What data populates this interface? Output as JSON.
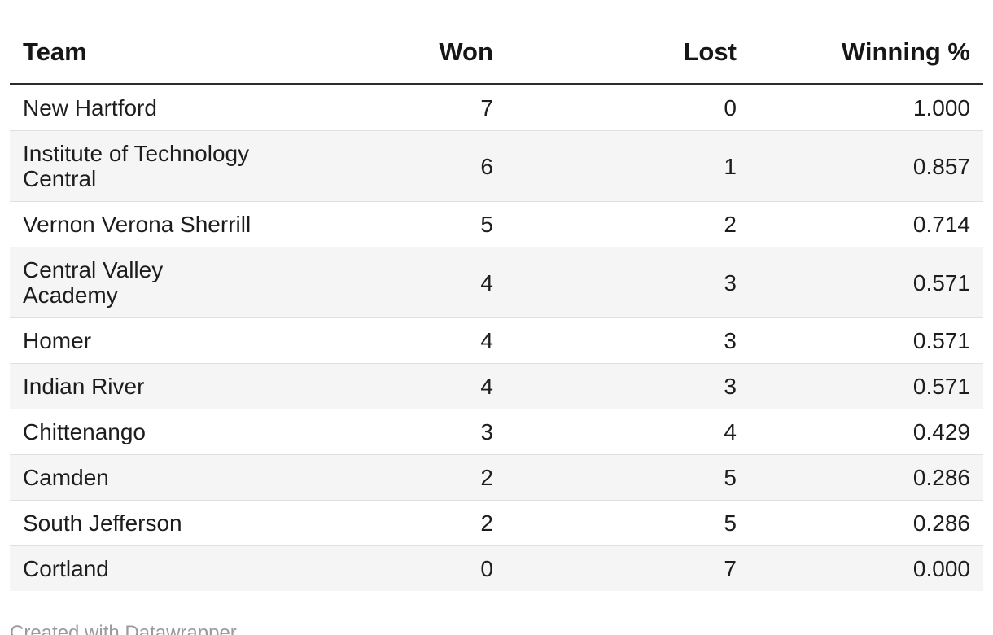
{
  "chart_data": {
    "type": "table",
    "title": "",
    "columns": [
      "Team",
      "Won",
      "Lost",
      "Winning %"
    ],
    "rows": [
      {
        "team": "New Hartford",
        "won": "7",
        "lost": "0",
        "pct": "1.000"
      },
      {
        "team": "Institute of Technology\nCentral",
        "won": "6",
        "lost": "1",
        "pct": "0.857"
      },
      {
        "team": "Vernon Verona Sherrill",
        "won": "5",
        "lost": "2",
        "pct": "0.714"
      },
      {
        "team": "Central Valley\nAcademy",
        "won": "4",
        "lost": "3",
        "pct": "0.571"
      },
      {
        "team": "Homer",
        "won": "4",
        "lost": "3",
        "pct": "0.571"
      },
      {
        "team": "Indian River",
        "won": "4",
        "lost": "3",
        "pct": "0.571"
      },
      {
        "team": "Chittenango",
        "won": "3",
        "lost": "4",
        "pct": "0.429"
      },
      {
        "team": "Camden",
        "won": "2",
        "lost": "5",
        "pct": "0.286"
      },
      {
        "team": "South Jefferson",
        "won": "2",
        "lost": "5",
        "pct": "0.286"
      },
      {
        "team": "Cortland",
        "won": "0",
        "lost": "7",
        "pct": "0.000"
      }
    ],
    "layout": {
      "striped_rows": true,
      "numeric_alignment": "right",
      "header_rule": true
    }
  },
  "footer": {
    "credit": "Created with Datawrapper"
  },
  "colors": {
    "row_stripe": "#f5f5f5",
    "row_divider": "#e0e0e0",
    "header_rule": "#2b2b2b",
    "body_text": "#1d1d1d",
    "credit_text": "#9b9b9b"
  }
}
